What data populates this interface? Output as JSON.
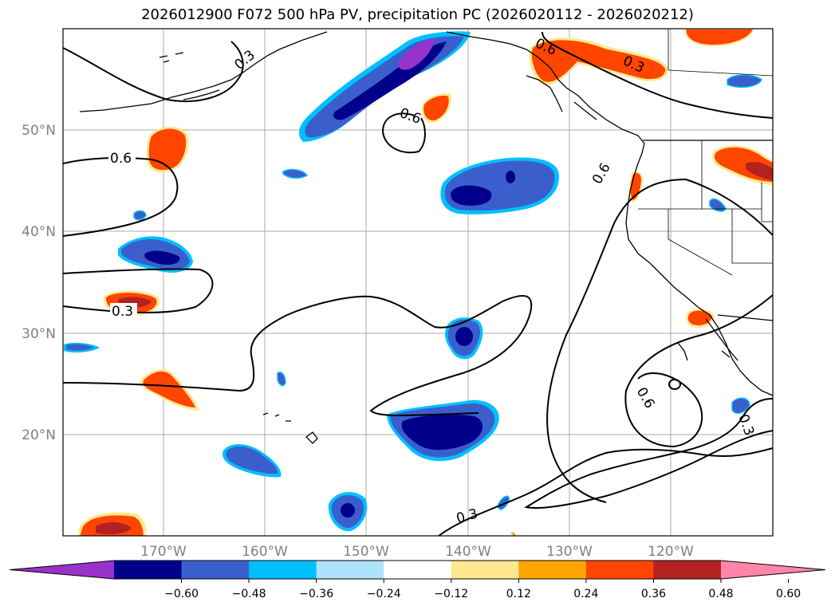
{
  "title": "2026012900 F072 500 hPa PV, precipitation PC (2026020112 - 2026020212)",
  "lon_labels": [
    "170°W",
    "160°W",
    "150°W",
    "140°W",
    "130°W",
    "120°W"
  ],
  "lat_labels": [
    "50°N",
    "40°N",
    "30°N",
    "20°N"
  ],
  "contour_labels": [
    "0.6",
    "0.3",
    "0.6",
    "0.3",
    "0.6",
    "0.3",
    "0.6",
    "0.6",
    "0.3",
    "0.3"
  ],
  "colorbar": {
    "colors": [
      "#9932cc",
      "#00008b",
      "#3a5fcd",
      "#00bfff",
      "#afe3fb",
      "#ffffff",
      "#ffe88f",
      "#ffa500",
      "#ff4500",
      "#b22222",
      "#ff86a8"
    ],
    "ticks": [
      "−0.60",
      "−0.48",
      "−0.36",
      "−0.24",
      "−0.12",
      "0.12",
      "0.24",
      "0.36",
      "0.48",
      "0.60"
    ]
  }
}
